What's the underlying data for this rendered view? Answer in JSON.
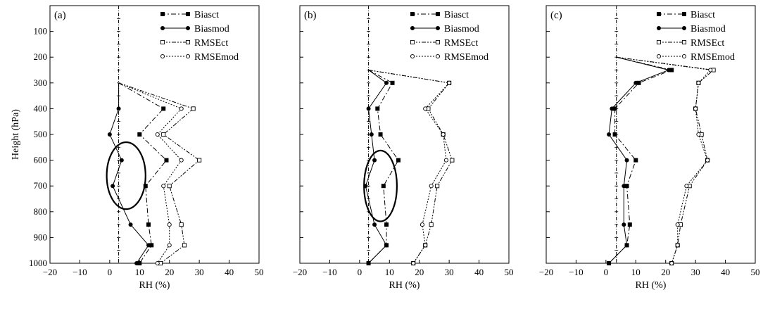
{
  "chart_data": [
    {
      "type": "line",
      "panel_label": "(a)",
      "xlabel": "RH (%)",
      "ylabel": "Height (hPa)",
      "xlim": [
        -20,
        50
      ],
      "ylim": [
        1000,
        0
      ],
      "x_ticks": [
        -20,
        -10,
        0,
        10,
        20,
        30,
        40,
        50
      ],
      "y_ticks": [
        100,
        200,
        300,
        400,
        500,
        600,
        700,
        800,
        900,
        1000
      ],
      "legend_position": "top-right",
      "reference_line_x": 3,
      "highlight_ellipse": {
        "cx": 5.5,
        "cy": 660,
        "rx": 6.5,
        "ry": 260
      },
      "series": [
        {
          "name": "Biasct",
          "style": "dash-dot",
          "marker": "filled-square",
          "points": [
            [
              3,
              300
            ],
            [
              18,
              400
            ],
            [
              10,
              500
            ],
            [
              19,
              600
            ],
            [
              12,
              700
            ],
            [
              13,
              850
            ],
            [
              14,
              930
            ],
            [
              10,
              1000
            ]
          ]
        },
        {
          "name": "Biasmod",
          "style": "solid",
          "marker": "filled-circle",
          "points": [
            [
              3,
              300
            ],
            [
              3,
              400
            ],
            [
              0,
              500
            ],
            [
              4,
              600
            ],
            [
              1,
              700
            ],
            [
              7,
              850
            ],
            [
              13,
              930
            ],
            [
              9,
              1000
            ]
          ]
        },
        {
          "name": "RMSEct",
          "style": "dash-dot-dot",
          "marker": "open-square",
          "points": [
            [
              3,
              300
            ],
            [
              28,
              400
            ],
            [
              18,
              500
            ],
            [
              30,
              600
            ],
            [
              20,
              700
            ],
            [
              24,
              850
            ],
            [
              25,
              930
            ],
            [
              17,
              1000
            ]
          ]
        },
        {
          "name": "RMSEmod",
          "style": "dotted",
          "marker": "open-circle",
          "points": [
            [
              3,
              300
            ],
            [
              24,
              400
            ],
            [
              16,
              500
            ],
            [
              24,
              600
            ],
            [
              18,
              700
            ],
            [
              20,
              850
            ],
            [
              20,
              930
            ],
            [
              16,
              1000
            ]
          ]
        }
      ]
    },
    {
      "type": "line",
      "panel_label": "(b)",
      "xlabel": "RH (%)",
      "ylabel": "",
      "xlim": [
        -20,
        50
      ],
      "ylim": [
        1000,
        0
      ],
      "x_ticks": [
        -20,
        -10,
        0,
        10,
        20,
        30,
        40,
        50
      ],
      "y_ticks": [
        100,
        200,
        300,
        400,
        500,
        600,
        700,
        800,
        900,
        1000
      ],
      "legend_position": "top-right",
      "reference_line_x": 3,
      "highlight_ellipse": {
        "cx": 7,
        "cy": 700,
        "rx": 5.5,
        "ry": 275
      },
      "series": [
        {
          "name": "Biasct",
          "style": "dash-dot",
          "marker": "filled-square",
          "points": [
            [
              3,
              250
            ],
            [
              11,
              300
            ],
            [
              6,
              400
            ],
            [
              7,
              500
            ],
            [
              13,
              600
            ],
            [
              8,
              700
            ],
            [
              9,
              850
            ],
            [
              9,
              930
            ],
            [
              3,
              1000
            ]
          ]
        },
        {
          "name": "Biasmod",
          "style": "solid",
          "marker": "filled-circle",
          "points": [
            [
              3,
              250
            ],
            [
              9,
              300
            ],
            [
              3,
              400
            ],
            [
              4,
              500
            ],
            [
              5,
              600
            ],
            [
              2,
              700
            ],
            [
              5,
              850
            ],
            [
              9,
              930
            ],
            [
              3,
              1000
            ]
          ]
        },
        {
          "name": "RMSEct",
          "style": "dash-dot-dot",
          "marker": "open-square",
          "points": [
            [
              3,
              250
            ],
            [
              30,
              300
            ],
            [
              23,
              400
            ],
            [
              28,
              500
            ],
            [
              31,
              600
            ],
            [
              26,
              700
            ],
            [
              24,
              850
            ],
            [
              22,
              930
            ],
            [
              18,
              1000
            ]
          ]
        },
        {
          "name": "RMSEmod",
          "style": "dotted",
          "marker": "open-circle",
          "points": [
            [
              3,
              250
            ],
            [
              30,
              300
            ],
            [
              22,
              400
            ],
            [
              28,
              500
            ],
            [
              29,
              600
            ],
            [
              24,
              700
            ],
            [
              21,
              850
            ],
            [
              22,
              930
            ],
            [
              18,
              1000
            ]
          ]
        }
      ]
    },
    {
      "type": "line",
      "panel_label": "(c)",
      "xlabel": "RH (%)",
      "ylabel": "",
      "xlim": [
        -20,
        50
      ],
      "ylim": [
        1000,
        0
      ],
      "x_ticks": [
        -20,
        -10,
        0,
        10,
        20,
        30,
        40,
        50
      ],
      "y_ticks": [
        100,
        200,
        300,
        400,
        500,
        600,
        700,
        800,
        900,
        1000
      ],
      "legend_position": "top-right",
      "reference_line_x": 3.5,
      "series": [
        {
          "name": "Biasct",
          "style": "dash-dot",
          "marker": "filled-square",
          "points": [
            [
              3.5,
              200
            ],
            [
              22,
              250
            ],
            [
              11,
              300
            ],
            [
              3,
              400
            ],
            [
              3,
              500
            ],
            [
              10,
              600
            ],
            [
              7,
              700
            ],
            [
              8,
              850
            ],
            [
              7,
              930
            ],
            [
              1,
              1000
            ]
          ]
        },
        {
          "name": "Biasmod",
          "style": "solid",
          "marker": "filled-circle",
          "points": [
            [
              3.5,
              200
            ],
            [
              21,
              250
            ],
            [
              10,
              300
            ],
            [
              2,
              400
            ],
            [
              1,
              500
            ],
            [
              7,
              600
            ],
            [
              6,
              700
            ],
            [
              6,
              850
            ],
            [
              7,
              930
            ],
            [
              1,
              1000
            ]
          ]
        },
        {
          "name": "RMSEct",
          "style": "dash-dot-dot",
          "marker": "open-square",
          "points": [
            [
              3.5,
              200
            ],
            [
              36,
              250
            ],
            [
              31,
              300
            ],
            [
              30,
              400
            ],
            [
              32,
              500
            ],
            [
              34,
              600
            ],
            [
              28,
              700
            ],
            [
              25,
              850
            ],
            [
              24,
              930
            ],
            [
              22,
              1000
            ]
          ]
        },
        {
          "name": "RMSEmod",
          "style": "dotted",
          "marker": "open-circle",
          "points": [
            [
              3.5,
              200
            ],
            [
              35,
              250
            ],
            [
              31,
              300
            ],
            [
              30,
              400
            ],
            [
              31,
              500
            ],
            [
              34,
              600
            ],
            [
              27,
              700
            ],
            [
              24,
              850
            ],
            [
              24,
              930
            ],
            [
              22,
              1000
            ]
          ]
        }
      ]
    }
  ]
}
